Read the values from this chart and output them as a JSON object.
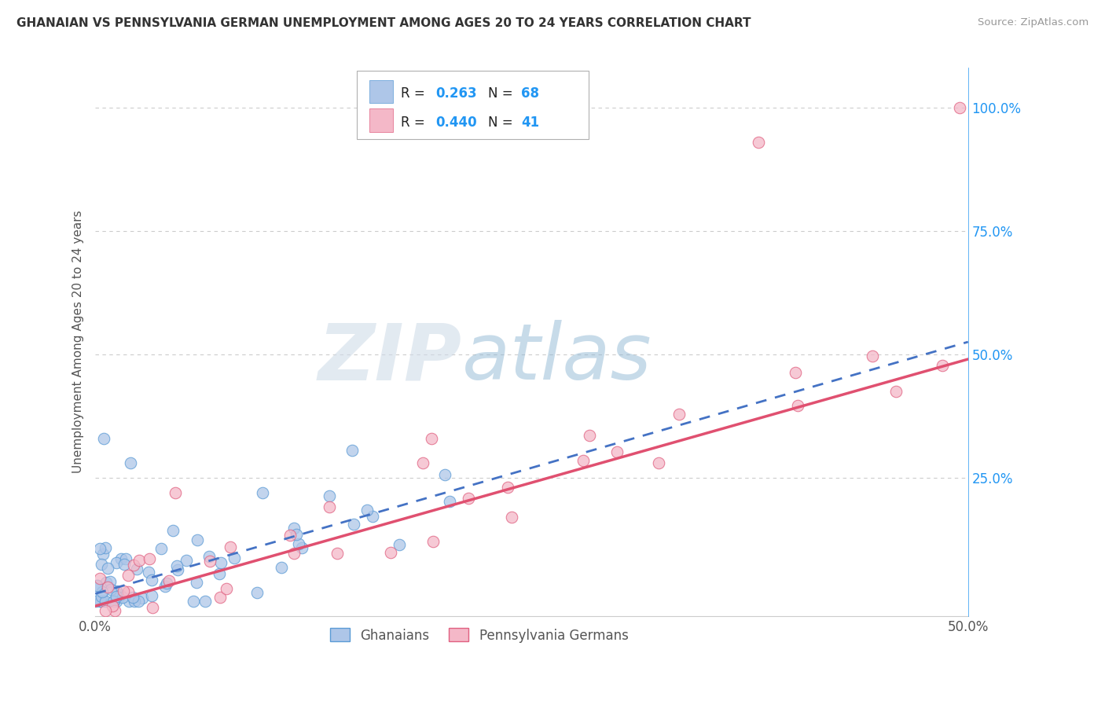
{
  "title": "GHANAIAN VS PENNSYLVANIA GERMAN UNEMPLOYMENT AMONG AGES 20 TO 24 YEARS CORRELATION CHART",
  "source": "Source: ZipAtlas.com",
  "ylabel": "Unemployment Among Ages 20 to 24 years",
  "xlim": [
    0.0,
    0.5
  ],
  "ylim": [
    -0.03,
    1.08
  ],
  "series1_name": "Ghanaians",
  "series1_color": "#aec6e8",
  "series1_edge_color": "#5b9bd5",
  "series1_R": 0.263,
  "series1_N": 68,
  "series1_line_color": "#4472c4",
  "series2_name": "Pennsylvania Germans",
  "series2_color": "#f4b8c8",
  "series2_edge_color": "#e06080",
  "series2_R": 0.44,
  "series2_N": 41,
  "series2_line_color": "#e05070",
  "watermark_zip": "ZIP",
  "watermark_atlas": "atlas",
  "watermark_zip_color": "#c8d8e8",
  "watermark_atlas_color": "#a0b8d0",
  "background_color": "#ffffff",
  "grid_color": "#cccccc",
  "legend_R_color": "#2196F3",
  "legend_N_color": "#2196F3",
  "right_tick_color": "#2196F3",
  "blue_line_intercept": 0.01,
  "blue_line_slope": 1.02,
  "pink_line_intercept": -0.01,
  "pink_line_slope": 1.02
}
